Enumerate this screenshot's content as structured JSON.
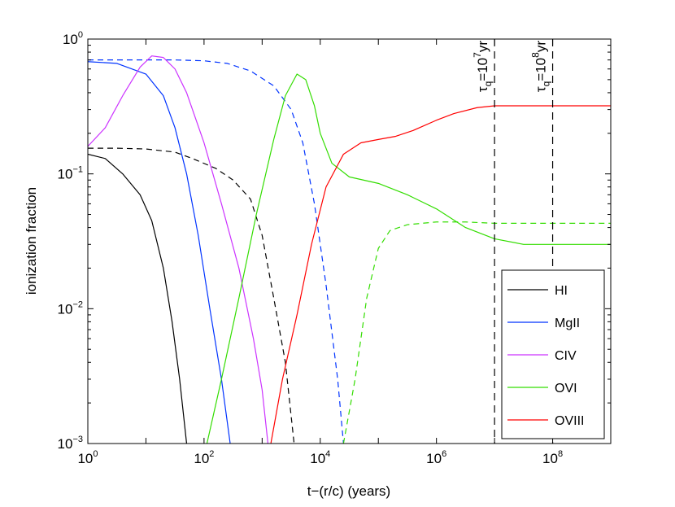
{
  "chart_data": {
    "type": "line",
    "xscale": "log",
    "yscale": "log",
    "xlabel": "t−(r/c)   (years)",
    "ylabel": "ionization fraction",
    "xlim_exp": [
      0,
      9
    ],
    "ylim_exp": [
      -3,
      0
    ],
    "xticks": [
      {
        "base": "10",
        "exp": "0"
      },
      {
        "base": "10",
        "exp": "2"
      },
      {
        "base": "10",
        "exp": "4"
      },
      {
        "base": "10",
        "exp": "6"
      },
      {
        "base": "10",
        "exp": "8"
      }
    ],
    "yticks": [
      {
        "base": "10",
        "exp": "0"
      },
      {
        "base": "10",
        "exp": "−1"
      },
      {
        "base": "10",
        "exp": "−2"
      },
      {
        "base": "10",
        "exp": "−3"
      }
    ],
    "series": [
      {
        "name": "HI",
        "style": "solid",
        "color": "#000000",
        "points": [
          [
            0,
            0.14
          ],
          [
            0.3,
            0.13
          ],
          [
            0.6,
            0.1
          ],
          [
            0.9,
            0.07
          ],
          [
            1.1,
            0.045
          ],
          [
            1.3,
            0.02
          ],
          [
            1.45,
            0.008
          ],
          [
            1.58,
            0.003
          ],
          [
            1.7,
            0.001
          ]
        ]
      },
      {
        "name": "HI",
        "style": "dashed",
        "color": "#000000",
        "points": [
          [
            0,
            0.155
          ],
          [
            0.5,
            0.155
          ],
          [
            1,
            0.153
          ],
          [
            1.5,
            0.145
          ],
          [
            1.8,
            0.13
          ],
          [
            2.2,
            0.11
          ],
          [
            2.5,
            0.09
          ],
          [
            2.8,
            0.065
          ],
          [
            3.0,
            0.035
          ],
          [
            3.2,
            0.012
          ],
          [
            3.4,
            0.004
          ],
          [
            3.55,
            0.001
          ]
        ]
      },
      {
        "name": "MgII",
        "style": "solid",
        "color": "#0033ff",
        "points": [
          [
            0,
            0.68
          ],
          [
            0.5,
            0.66
          ],
          [
            1,
            0.55
          ],
          [
            1.3,
            0.38
          ],
          [
            1.5,
            0.22
          ],
          [
            1.7,
            0.1
          ],
          [
            1.9,
            0.035
          ],
          [
            2.1,
            0.01
          ],
          [
            2.3,
            0.003
          ],
          [
            2.45,
            0.001
          ]
        ]
      },
      {
        "name": "MgII",
        "style": "dashed",
        "color": "#0033ff",
        "points": [
          [
            0,
            0.7
          ],
          [
            1,
            0.7
          ],
          [
            1.5,
            0.7
          ],
          [
            2,
            0.69
          ],
          [
            2.4,
            0.66
          ],
          [
            2.8,
            0.58
          ],
          [
            3.2,
            0.45
          ],
          [
            3.5,
            0.3
          ],
          [
            3.7,
            0.17
          ],
          [
            3.9,
            0.06
          ],
          [
            4.1,
            0.015
          ],
          [
            4.3,
            0.003
          ],
          [
            4.4,
            0.001
          ]
        ]
      },
      {
        "name": "CIV",
        "style": "solid",
        "color": "#cc33ff",
        "points": [
          [
            0,
            0.16
          ],
          [
            0.3,
            0.22
          ],
          [
            0.6,
            0.38
          ],
          [
            0.9,
            0.62
          ],
          [
            1.1,
            0.75
          ],
          [
            1.3,
            0.73
          ],
          [
            1.5,
            0.6
          ],
          [
            1.7,
            0.4
          ],
          [
            2,
            0.17
          ],
          [
            2.3,
            0.06
          ],
          [
            2.6,
            0.02
          ],
          [
            2.85,
            0.006
          ],
          [
            3.0,
            0.0025
          ],
          [
            3.1,
            0.001
          ]
        ]
      },
      {
        "name": "OVI",
        "style": "solid",
        "color": "#33dd00",
        "points": [
          [
            2.05,
            0.001
          ],
          [
            2.3,
            0.003
          ],
          [
            2.6,
            0.012
          ],
          [
            2.9,
            0.05
          ],
          [
            3.2,
            0.18
          ],
          [
            3.4,
            0.38
          ],
          [
            3.6,
            0.55
          ],
          [
            3.75,
            0.5
          ],
          [
            3.9,
            0.32
          ],
          [
            4.0,
            0.2
          ],
          [
            4.2,
            0.12
          ],
          [
            4.5,
            0.095
          ],
          [
            5,
            0.085
          ],
          [
            5.5,
            0.07
          ],
          [
            6,
            0.055
          ],
          [
            6.5,
            0.04
          ],
          [
            7,
            0.033
          ],
          [
            7.5,
            0.03
          ],
          [
            8,
            0.03
          ],
          [
            9,
            0.03
          ]
        ]
      },
      {
        "name": "OVI",
        "style": "dashed",
        "color": "#33dd00",
        "points": [
          [
            4.4,
            0.001
          ],
          [
            4.6,
            0.003
          ],
          [
            4.8,
            0.012
          ],
          [
            5,
            0.028
          ],
          [
            5.2,
            0.038
          ],
          [
            5.5,
            0.042
          ],
          [
            6,
            0.044
          ],
          [
            6.5,
            0.044
          ],
          [
            7,
            0.043
          ],
          [
            8,
            0.043
          ],
          [
            9,
            0.043
          ]
        ]
      },
      {
        "name": "OVIII",
        "style": "solid",
        "color": "#ff0000",
        "points": [
          [
            3.15,
            0.001
          ],
          [
            3.35,
            0.003
          ],
          [
            3.6,
            0.009
          ],
          [
            3.85,
            0.03
          ],
          [
            4.1,
            0.08
          ],
          [
            4.4,
            0.14
          ],
          [
            4.7,
            0.17
          ],
          [
            5,
            0.18
          ],
          [
            5.3,
            0.19
          ],
          [
            5.6,
            0.21
          ],
          [
            6,
            0.25
          ],
          [
            6.3,
            0.28
          ],
          [
            6.7,
            0.31
          ],
          [
            7,
            0.32
          ],
          [
            8,
            0.32
          ],
          [
            9,
            0.32
          ]
        ]
      }
    ],
    "vlines": [
      {
        "x_exp": 7,
        "label_base": "τ",
        "label_sub": "q",
        "label_mid": "=10",
        "label_exp": "7",
        "label_tail": "yr"
      },
      {
        "x_exp": 8,
        "label_base": "τ",
        "label_sub": "q",
        "label_mid": "=10",
        "label_exp": "8",
        "label_tail": "yr"
      }
    ],
    "legend": {
      "position": "bottom-right",
      "entries": [
        {
          "label": "HI",
          "color": "#000000"
        },
        {
          "label": "MgII",
          "color": "#0033ff"
        },
        {
          "label": "CIV",
          "color": "#cc33ff"
        },
        {
          "label": "OVI",
          "color": "#33dd00"
        },
        {
          "label": "OVIII",
          "color": "#ff0000"
        }
      ]
    }
  }
}
